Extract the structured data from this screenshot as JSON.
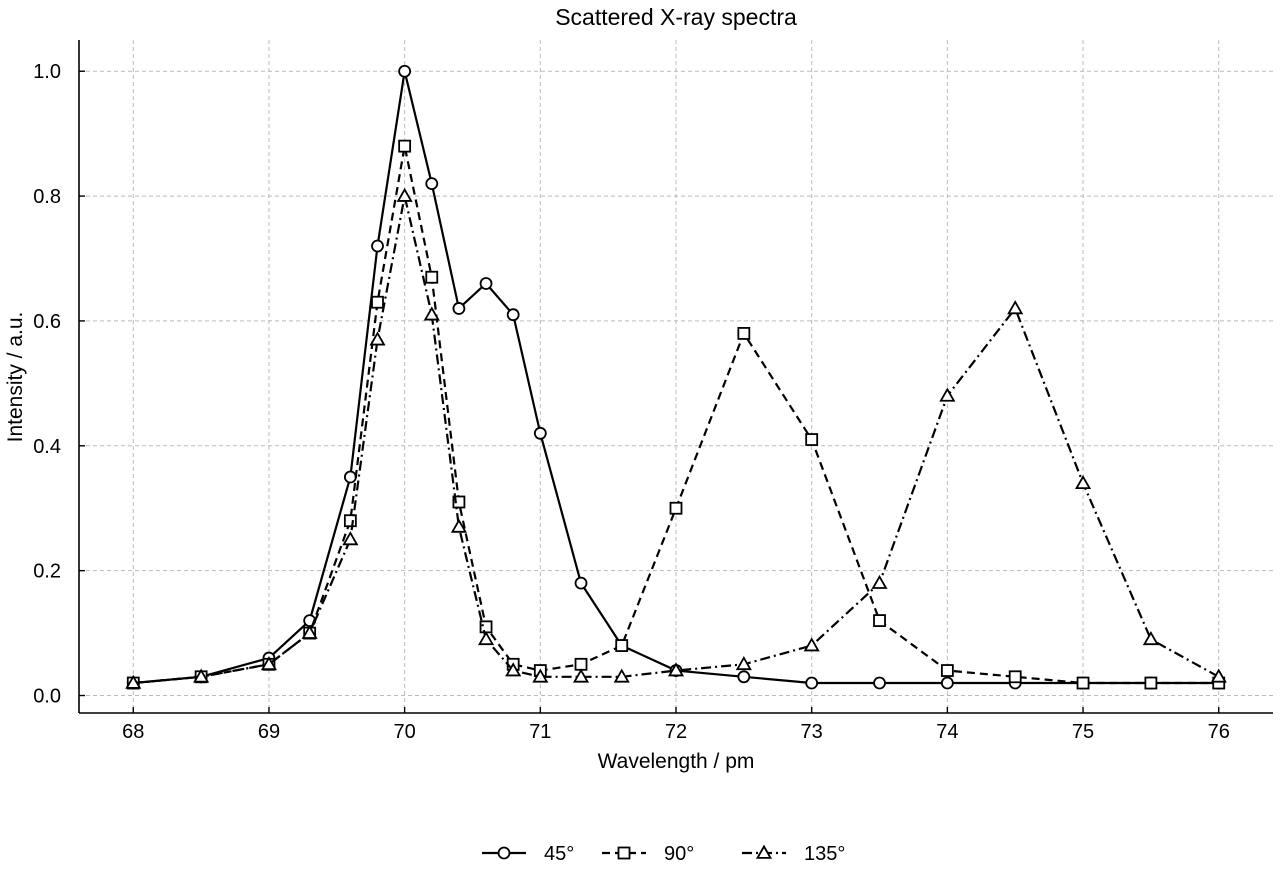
{
  "chart_data": {
    "type": "line",
    "title": "Scattered X-ray spectra",
    "xlabel": "Wavelength / pm",
    "ylabel": "Intensity / a.u.",
    "xlim": [
      67.6,
      76.4
    ],
    "ylim": [
      -0.028,
      1.05
    ],
    "xticks": [
      68,
      69,
      70,
      71,
      72,
      73,
      74,
      75,
      76
    ],
    "yticks": [
      0.0,
      0.2,
      0.4,
      0.6,
      0.8,
      1.0
    ],
    "ytick_labels": [
      "0.0",
      "0.2",
      "0.4",
      "0.6",
      "0.8",
      "1.0"
    ],
    "grid": true,
    "legend_position": "bottom-center",
    "series": [
      {
        "name": "45°",
        "marker": "circle",
        "linestyle": "solid",
        "x": [
          68,
          68.5,
          69,
          69.3,
          69.6,
          69.8,
          70,
          70.2,
          70.4,
          70.6,
          70.8,
          71,
          71.3,
          71.6,
          72,
          72.5,
          73,
          73.5,
          74,
          74.5,
          75,
          75.5,
          76
        ],
        "y": [
          0.02,
          0.03,
          0.06,
          0.12,
          0.35,
          0.72,
          1.0,
          0.82,
          0.62,
          0.66,
          0.61,
          0.42,
          0.18,
          0.08,
          0.04,
          0.03,
          0.02,
          0.02,
          0.02,
          0.02,
          0.02,
          0.02,
          0.02
        ]
      },
      {
        "name": "90°",
        "marker": "square",
        "linestyle": "dashed",
        "x": [
          68,
          68.5,
          69,
          69.3,
          69.6,
          69.8,
          70,
          70.2,
          70.4,
          70.6,
          70.8,
          71,
          71.3,
          71.6,
          72,
          72.5,
          73,
          73.5,
          74,
          74.5,
          75,
          75.5,
          76
        ],
        "y": [
          0.02,
          0.03,
          0.05,
          0.1,
          0.28,
          0.63,
          0.88,
          0.67,
          0.31,
          0.11,
          0.05,
          0.04,
          0.05,
          0.08,
          0.3,
          0.58,
          0.41,
          0.12,
          0.04,
          0.03,
          0.02,
          0.02,
          0.02
        ]
      },
      {
        "name": "135°",
        "marker": "triangle",
        "linestyle": "dashdot",
        "x": [
          68,
          68.5,
          69,
          69.3,
          69.6,
          69.8,
          70,
          70.2,
          70.4,
          70.6,
          70.8,
          71,
          71.3,
          71.6,
          72,
          72.5,
          73,
          73.5,
          74,
          74.5,
          75,
          75.5,
          76
        ],
        "y": [
          0.02,
          0.03,
          0.05,
          0.1,
          0.25,
          0.57,
          0.8,
          0.61,
          0.27,
          0.09,
          0.04,
          0.03,
          0.03,
          0.03,
          0.04,
          0.05,
          0.08,
          0.18,
          0.48,
          0.62,
          0.34,
          0.09,
          0.03
        ]
      }
    ]
  }
}
